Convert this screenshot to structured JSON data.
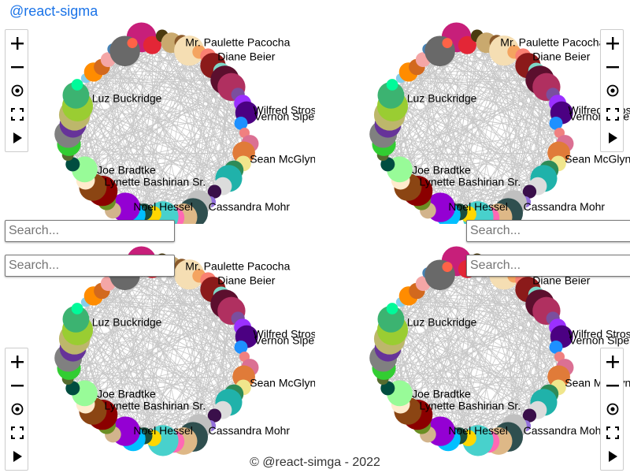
{
  "header": {
    "title": "@react-sigma"
  },
  "search": {
    "placeholder": "Search..."
  },
  "footer": {
    "text": "© @react-simga - 2022"
  },
  "controls": [
    {
      "name": "zoom-in-button",
      "icon": "plus-icon"
    },
    {
      "name": "zoom-out-button",
      "icon": "minus-icon"
    },
    {
      "name": "reset-camera-button",
      "icon": "target-icon"
    },
    {
      "name": "fullscreen-button",
      "icon": "fullscreen-icon"
    },
    {
      "name": "layout-play-button",
      "icon": "play-icon"
    }
  ],
  "graph": {
    "edge_color": "#c8c8c8",
    "labels": [
      "Mr. Paulette Pacocha",
      "Diane Beier",
      "Luz Buckridge",
      "Wilfred Strosin",
      "Vernon Sipes",
      "Sean McGlynn",
      "Joe Bradtke",
      "Lynette Bashirian Sr.",
      "Noel Hessel",
      "Cassandra Mohr"
    ],
    "node_colors": [
      "#c71f7a",
      "#e32636",
      "#4b3b10",
      "#c9a96e",
      "#8b5a2b",
      "#f5deb3",
      "#f4a460",
      "#fa8072",
      "#8b1a1a",
      "#7fd8c8",
      "#5c0f2e",
      "#b03060",
      "#7a4f9e",
      "#9b30ff",
      "#4b0082",
      "#1e90ff",
      "#f08080",
      "#db7093",
      "#e07b39",
      "#f0e68c",
      "#2e8b57",
      "#20b2aa",
      "#dcdcdc",
      "#3a0f4a",
      "#9370db",
      "#c0c0c0",
      "#2f4f4f",
      "#deb887",
      "#ff69b4",
      "#48d1cc",
      "#ffd700",
      "#1b4d3e",
      "#00bfff",
      "#9400d3",
      "#d2b48c",
      "#6b8e23",
      "#8b0000",
      "#8b4513",
      "#ffebcd",
      "#98fb98",
      "#004d40",
      "#556b2f",
      "#32cd32",
      "#808080",
      "#663399",
      "#bdb76b",
      "#9acd32",
      "#3cb371",
      "#00fa9a",
      "#87ceeb",
      "#ff8c00",
      "#d2691e",
      "#f4a6a6",
      "#4682b4",
      "#696969",
      "#ff6347"
    ]
  }
}
